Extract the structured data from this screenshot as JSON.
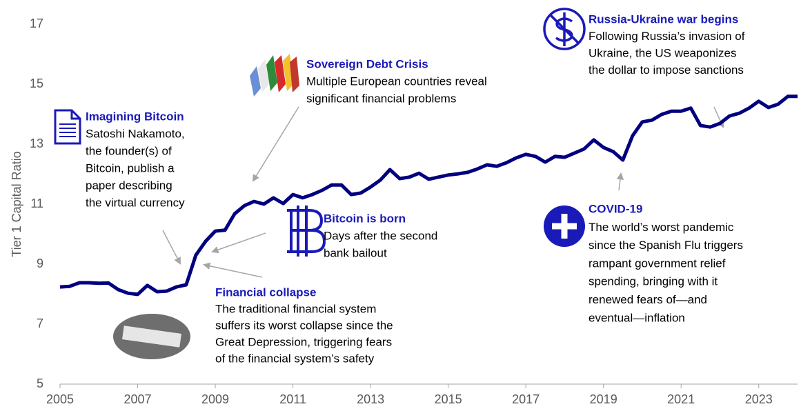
{
  "chart_data": {
    "type": "line",
    "y_label": "Tier 1 Capital Ratio",
    "xlim": [
      2005,
      2024
    ],
    "xticks": [
      2005,
      2007,
      2009,
      2011,
      2013,
      2015,
      2017,
      2019,
      2021,
      2023
    ],
    "ylim": [
      5,
      17
    ],
    "yticks": [
      5,
      7,
      9,
      11,
      13,
      15,
      17
    ],
    "series": [
      {
        "color": "#000080",
        "x": [
          2005,
          2005.25,
          2005.5,
          2005.75,
          2006,
          2006.25,
          2006.5,
          2006.75,
          2007,
          2007.25,
          2007.5,
          2007.75,
          2008,
          2008.25,
          2008.5,
          2008.75,
          2009,
          2009.25,
          2009.5,
          2009.75,
          2010,
          2010.25,
          2010.5,
          2010.75,
          2011,
          2011.25,
          2011.5,
          2011.75,
          2012,
          2012.25,
          2012.5,
          2012.75,
          2013,
          2013.25,
          2013.5,
          2013.75,
          2014,
          2014.25,
          2014.5,
          2014.75,
          2015,
          2015.25,
          2015.5,
          2015.75,
          2016,
          2016.25,
          2016.5,
          2016.75,
          2017,
          2017.25,
          2017.5,
          2017.75,
          2018,
          2018.25,
          2018.5,
          2018.75,
          2019,
          2019.25,
          2019.5,
          2019.75,
          2020,
          2020.25,
          2020.5,
          2020.75,
          2021,
          2021.25,
          2021.5,
          2021.75,
          2022,
          2022.25,
          2022.5,
          2022.75,
          2023,
          2023.25,
          2023.5,
          2023.75,
          2024
        ],
        "values": [
          8.24,
          8.26,
          8.38,
          8.38,
          8.36,
          8.37,
          8.15,
          8.03,
          7.99,
          8.29,
          8.08,
          8.1,
          8.24,
          8.31,
          9.3,
          9.76,
          10.1,
          10.13,
          10.68,
          10.95,
          11.09,
          11.0,
          11.21,
          11.02,
          11.32,
          11.21,
          11.32,
          11.46,
          11.64,
          11.64,
          11.32,
          11.37,
          11.57,
          11.8,
          12.15,
          11.85,
          11.9,
          12.03,
          11.83,
          11.9,
          11.97,
          12.01,
          12.06,
          12.17,
          12.31,
          12.26,
          12.38,
          12.54,
          12.66,
          12.59,
          12.4,
          12.59,
          12.56,
          12.7,
          12.84,
          13.14,
          12.89,
          12.75,
          12.47,
          13.28,
          13.74,
          13.8,
          13.99,
          14.1,
          14.1,
          14.2,
          13.62,
          13.57,
          13.69,
          13.94,
          14.03,
          14.2,
          14.43,
          14.22,
          14.33,
          14.59,
          14.59
        ]
      }
    ],
    "annotations": [
      {
        "title": "Imagining Bitcoin",
        "lines": [
          "Satoshi Nakamoto,",
          "the founder(s) of",
          "Bitcoin, publish a",
          "paper describing",
          "the virtual currency"
        ]
      },
      {
        "title": "Sovereign Debt Crisis",
        "lines": [
          "Multiple European countries reveal",
          "significant financial problems"
        ]
      },
      {
        "title": "Bitcoin is born",
        "lines": [
          "Days after the second",
          "bank bailout"
        ]
      },
      {
        "title": "Financial collapse",
        "lines": [
          "The traditional financial system",
          "suffers its worst collapse since the",
          "Great Depression, triggering fears",
          "of the financial system’s safety"
        ]
      },
      {
        "title": "Russia-Ukraine war begins",
        "lines": [
          "Following Russia’s invasion of",
          "Ukraine, the US weaponizes",
          "the dollar to impose sanctions"
        ]
      },
      {
        "title": "COVID-19",
        "lines": [
          "The world’s worst pandemic",
          "since the Spanish Flu triggers",
          "rampant government relief",
          "spending, bringing with it",
          "renewed fears of—and",
          "eventual—inflation"
        ]
      }
    ]
  }
}
